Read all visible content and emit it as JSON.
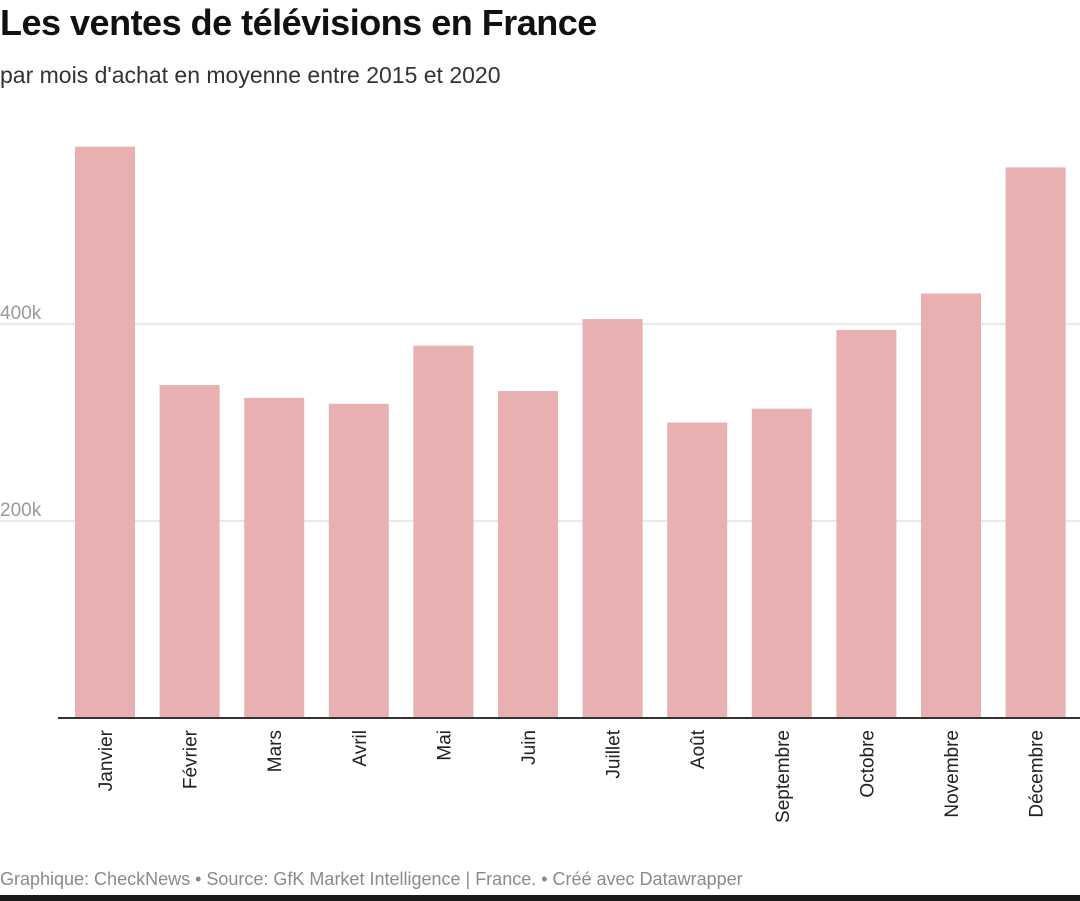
{
  "header": {
    "title": "Les ventes de télévisions en France",
    "subtitle": "par mois d'achat en moyenne entre 2015 et 2020"
  },
  "footer": {
    "credit": "Graphique: CheckNews • Source: GfK Market Intelligence | France. • Créé avec Datawrapper"
  },
  "colors": {
    "bar": "#e8b0b0",
    "grid": "#e2e2e2",
    "axis": "#333333"
  },
  "chart_data": {
    "type": "bar",
    "title": "Les ventes de télévisions en France",
    "subtitle": "par mois d'achat en moyenne entre 2015 et 2020",
    "xlabel": "",
    "ylabel": "",
    "categories": [
      "Janvier",
      "Février",
      "Mars",
      "Avril",
      "Mai",
      "Juin",
      "Juillet",
      "Août",
      "Septembre",
      "Octobre",
      "Novembre",
      "Décembre"
    ],
    "values": [
      580000,
      338000,
      325000,
      319000,
      378000,
      332000,
      405000,
      300000,
      314000,
      394000,
      431000,
      559000
    ],
    "ylim": [
      0,
      600000
    ],
    "yticks": [
      200000,
      400000
    ],
    "ytick_labels": [
      "200k",
      "400k"
    ],
    "grid": true
  }
}
